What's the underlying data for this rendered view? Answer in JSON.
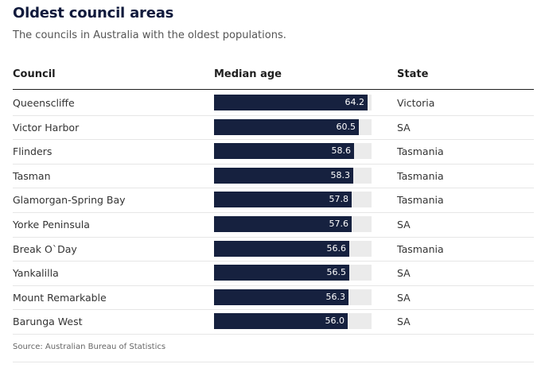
{
  "title": "Oldest council areas",
  "subtitle": "The councils in Australia with the oldest populations.",
  "headers": {
    "council": "Council",
    "median_age": "Median age",
    "state": "State"
  },
  "source": "Source: Australian Bureau of Statistics",
  "colors": {
    "bar": "#16213f",
    "track": "#ebebeb",
    "title": "#101a3c"
  },
  "chart_data": {
    "type": "table",
    "columns": [
      "Council",
      "Median age",
      "State"
    ],
    "xlim": [
      0,
      66
    ],
    "rows": [
      {
        "council": "Queenscliffe",
        "age": 64.2,
        "age_label": "64.2",
        "state": "Victoria"
      },
      {
        "council": "Victor Harbor",
        "age": 60.5,
        "age_label": "60.5",
        "state": "SA"
      },
      {
        "council": "Flinders",
        "age": 58.6,
        "age_label": "58.6",
        "state": "Tasmania"
      },
      {
        "council": "Tasman",
        "age": 58.3,
        "age_label": "58.3",
        "state": "Tasmania"
      },
      {
        "council": "Glamorgan-Spring Bay",
        "age": 57.8,
        "age_label": "57.8",
        "state": "Tasmania"
      },
      {
        "council": "Yorke Peninsula",
        "age": 57.6,
        "age_label": "57.6",
        "state": "SA"
      },
      {
        "council": "Break O`Day",
        "age": 56.6,
        "age_label": "56.6",
        "state": "Tasmania"
      },
      {
        "council": "Yankalilla",
        "age": 56.5,
        "age_label": "56.5",
        "state": "SA"
      },
      {
        "council": "Mount Remarkable",
        "age": 56.3,
        "age_label": "56.3",
        "state": "SA"
      },
      {
        "council": "Barunga West",
        "age": 56.0,
        "age_label": "56.0",
        "state": "SA"
      }
    ]
  }
}
